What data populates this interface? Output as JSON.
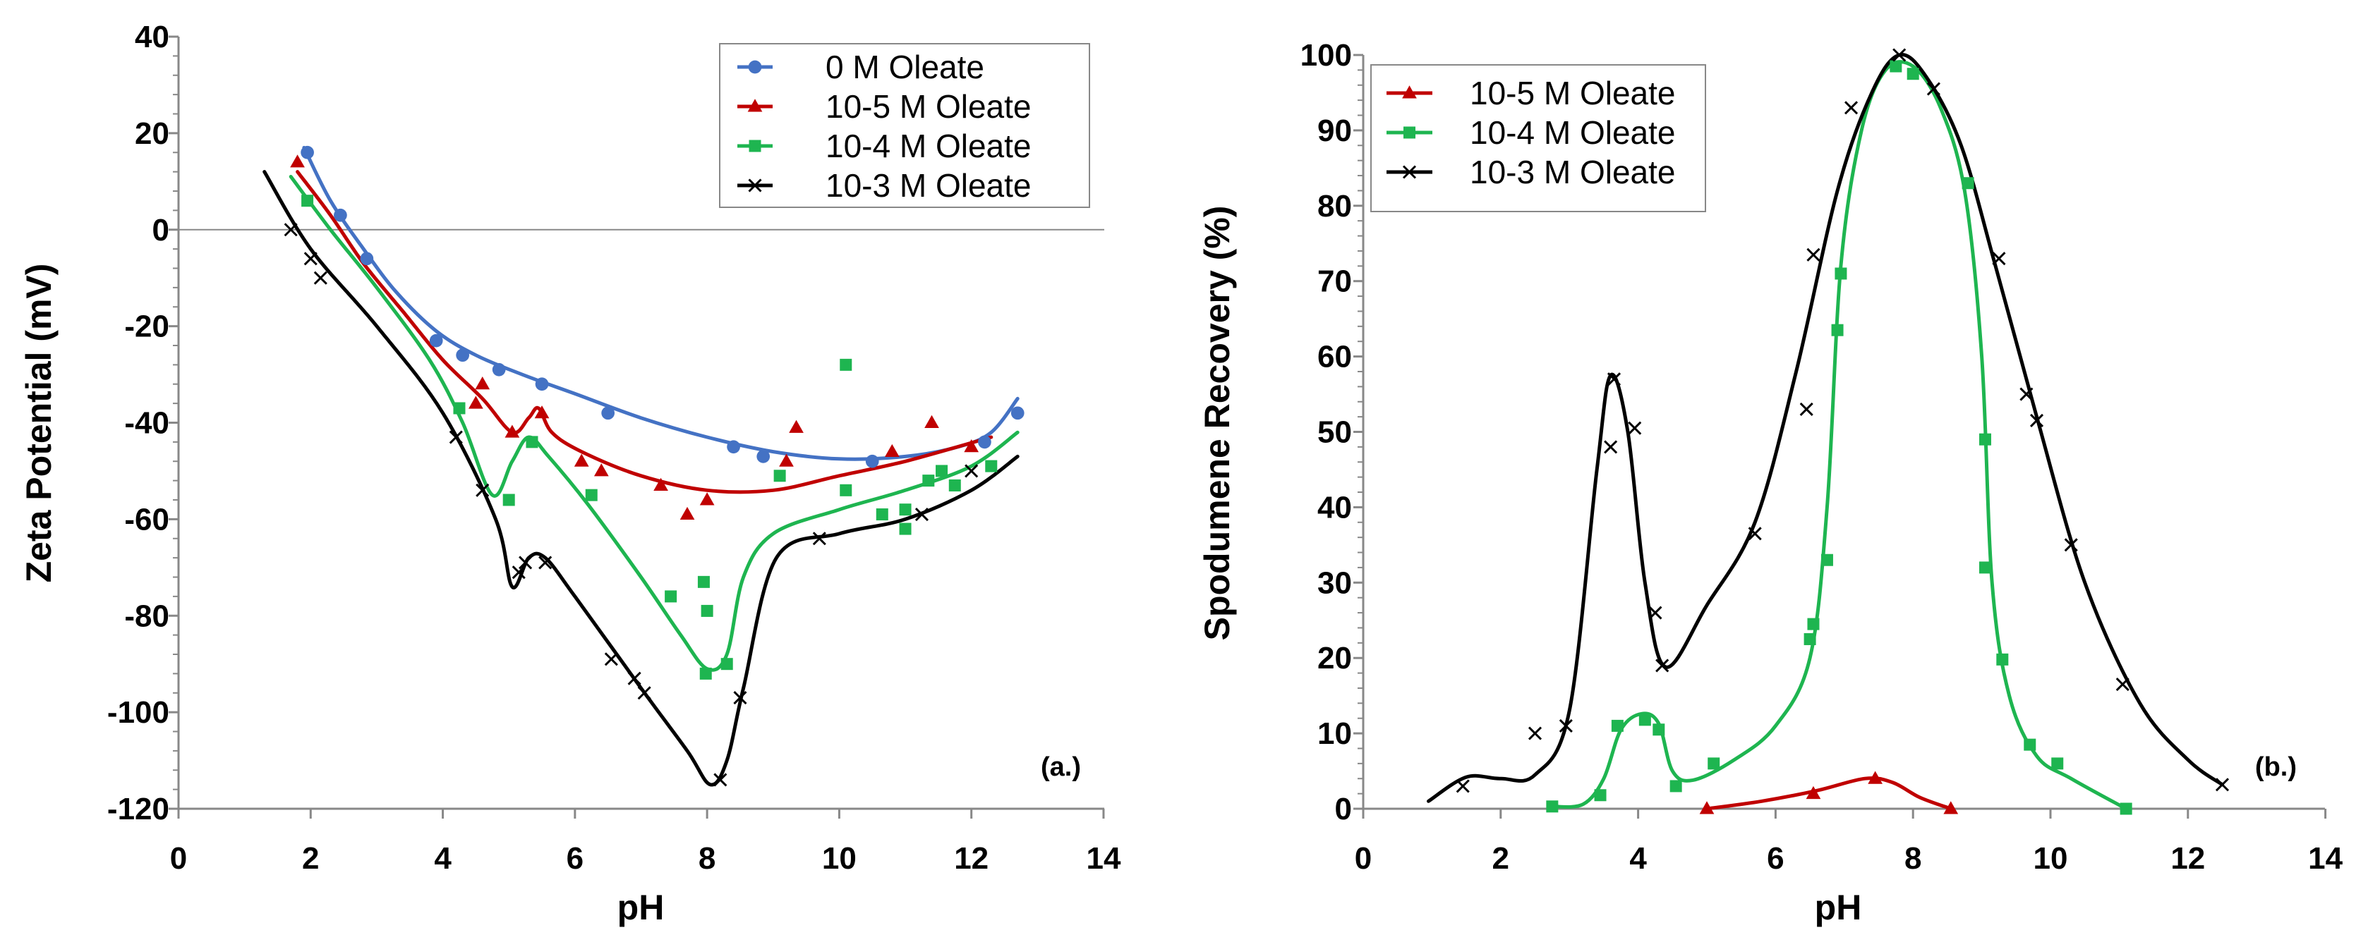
{
  "chart_data": [
    {
      "type": "scatter",
      "panel_label": "(a.)",
      "xlabel": "pH",
      "ylabel": "Zeta Potential (mV)",
      "xlim": [
        0,
        14
      ],
      "ylim": [
        -120,
        40
      ],
      "xticks": [
        0,
        2,
        4,
        6,
        8,
        10,
        12,
        14
      ],
      "yticks": [
        -120,
        -100,
        -80,
        -60,
        -40,
        -20,
        0,
        20,
        40
      ],
      "grid": false,
      "legend_position": "top-right",
      "zero_line": true,
      "series": [
        {
          "name": "0 M Oleate",
          "color": "#4472C4",
          "marker": "circle",
          "points": [
            [
              1.95,
              16
            ],
            [
              2.45,
              3
            ],
            [
              2.85,
              -6
            ],
            [
              3.9,
              -23
            ],
            [
              4.3,
              -26
            ],
            [
              4.85,
              -29
            ],
            [
              5.5,
              -32
            ],
            [
              6.5,
              -38
            ],
            [
              8.4,
              -45
            ],
            [
              8.85,
              -47
            ],
            [
              10.5,
              -48
            ],
            [
              12.2,
              -44
            ],
            [
              12.7,
              -38
            ]
          ],
          "curve": [
            [
              1.9,
              17
            ],
            [
              2.3,
              6
            ],
            [
              2.8,
              -4
            ],
            [
              3.3,
              -13
            ],
            [
              3.9,
              -21
            ],
            [
              4.5,
              -26
            ],
            [
              5.2,
              -30
            ],
            [
              6,
              -34
            ],
            [
              7,
              -39
            ],
            [
              8,
              -43
            ],
            [
              9,
              -46
            ],
            [
              10,
              -47.5
            ],
            [
              11,
              -47
            ],
            [
              11.8,
              -45
            ],
            [
              12.3,
              -42
            ],
            [
              12.7,
              -35
            ]
          ]
        },
        {
          "name": "10-5 M Oleate",
          "color": "#C00000",
          "marker": "triangle",
          "points": [
            [
              1.8,
              14
            ],
            [
              4.5,
              -36
            ],
            [
              4.6,
              -32
            ],
            [
              5.05,
              -42
            ],
            [
              5.5,
              -38
            ],
            [
              6.1,
              -48
            ],
            [
              6.4,
              -50
            ],
            [
              7.3,
              -53
            ],
            [
              7.7,
              -59
            ],
            [
              8.0,
              -56
            ],
            [
              9.2,
              -48
            ],
            [
              9.35,
              -41
            ],
            [
              10.8,
              -46
            ],
            [
              11.4,
              -40
            ],
            [
              12.0,
              -45
            ]
          ],
          "curve": [
            [
              1.8,
              12
            ],
            [
              2.3,
              3
            ],
            [
              2.8,
              -7
            ],
            [
              3.4,
              -17
            ],
            [
              4,
              -27
            ],
            [
              4.6,
              -35
            ],
            [
              5.05,
              -42
            ],
            [
              5.3,
              -39
            ],
            [
              5.45,
              -37
            ],
            [
              5.65,
              -42
            ],
            [
              6.1,
              -46
            ],
            [
              7,
              -51
            ],
            [
              8,
              -54
            ],
            [
              9,
              -54
            ],
            [
              10,
              -51
            ],
            [
              11,
              -48
            ],
            [
              12.3,
              -43
            ]
          ]
        },
        {
          "name": "10-4 M Oleate",
          "color": "#1EB550",
          "marker": "square",
          "points": [
            [
              1.95,
              6
            ],
            [
              4.25,
              -37
            ],
            [
              5.0,
              -56
            ],
            [
              5.35,
              -44
            ],
            [
              6.25,
              -55
            ],
            [
              7.45,
              -76
            ],
            [
              7.95,
              -73
            ],
            [
              8.0,
              -79
            ],
            [
              7.98,
              -92
            ],
            [
              8.3,
              -90
            ],
            [
              9.1,
              -51
            ],
            [
              10.1,
              -28
            ],
            [
              10.1,
              -54
            ],
            [
              10.65,
              -59
            ],
            [
              11.0,
              -58
            ],
            [
              11.0,
              -62
            ],
            [
              11.35,
              -52
            ],
            [
              11.55,
              -50
            ],
            [
              11.75,
              -53
            ],
            [
              12.3,
              -49
            ]
          ],
          "curve": [
            [
              1.7,
              11
            ],
            [
              2.3,
              0
            ],
            [
              3,
              -12
            ],
            [
              3.8,
              -27
            ],
            [
              4.3,
              -40
            ],
            [
              4.75,
              -55
            ],
            [
              5.05,
              -48
            ],
            [
              5.3,
              -43
            ],
            [
              5.6,
              -47
            ],
            [
              6.2,
              -57
            ],
            [
              7,
              -72
            ],
            [
              7.6,
              -84
            ],
            [
              8,
              -91
            ],
            [
              8.3,
              -88
            ],
            [
              8.55,
              -72
            ],
            [
              9,
              -63
            ],
            [
              10,
              -58
            ],
            [
              11,
              -54
            ],
            [
              12,
              -49
            ],
            [
              12.7,
              -42
            ]
          ]
        },
        {
          "name": "10-3 M Oleate",
          "color": "#000000",
          "marker": "x",
          "points": [
            [
              1.7,
              0
            ],
            [
              2.0,
              -6
            ],
            [
              2.15,
              -10
            ],
            [
              4.2,
              -43
            ],
            [
              4.6,
              -54
            ],
            [
              5.15,
              -71
            ],
            [
              5.25,
              -69
            ],
            [
              5.55,
              -69
            ],
            [
              6.55,
              -89
            ],
            [
              6.9,
              -93
            ],
            [
              7.05,
              -96
            ],
            [
              8.2,
              -114
            ],
            [
              8.5,
              -97
            ],
            [
              9.7,
              -64
            ],
            [
              11.25,
              -59
            ],
            [
              12.0,
              -50
            ]
          ],
          "curve": [
            [
              1.3,
              12
            ],
            [
              2,
              -4
            ],
            [
              3,
              -20
            ],
            [
              4,
              -38
            ],
            [
              4.8,
              -60
            ],
            [
              5.05,
              -74
            ],
            [
              5.3,
              -68
            ],
            [
              5.55,
              -68
            ],
            [
              6,
              -76
            ],
            [
              7,
              -95
            ],
            [
              7.7,
              -108
            ],
            [
              8.05,
              -115
            ],
            [
              8.3,
              -110
            ],
            [
              8.55,
              -95
            ],
            [
              9.05,
              -68
            ],
            [
              10,
              -63
            ],
            [
              11,
              -60
            ],
            [
              12,
              -54
            ],
            [
              12.7,
              -47
            ]
          ]
        }
      ]
    },
    {
      "type": "scatter",
      "panel_label": "(b.)",
      "xlabel": "pH",
      "ylabel": "Spodumene Recovery (%)",
      "xlim": [
        0,
        14
      ],
      "ylim": [
        0,
        100
      ],
      "xticks": [
        0,
        2,
        4,
        6,
        8,
        10,
        12,
        14
      ],
      "yticks": [
        0,
        10,
        20,
        30,
        40,
        50,
        60,
        70,
        80,
        90,
        100
      ],
      "grid": false,
      "legend_position": "top-left",
      "series": [
        {
          "name": "10-5 M Oleate",
          "color": "#C00000",
          "marker": "triangle",
          "points": [
            [
              5.0,
              0
            ],
            [
              6.55,
              2
            ],
            [
              7.45,
              4
            ],
            [
              8.55,
              0
            ]
          ],
          "curve": [
            [
              5,
              0
            ],
            [
              5.8,
              1
            ],
            [
              6.6,
              2.4
            ],
            [
              7.3,
              4
            ],
            [
              7.7,
              3.5
            ],
            [
              8.1,
              1.5
            ],
            [
              8.55,
              0
            ]
          ]
        },
        {
          "name": "10-4 M Oleate",
          "color": "#1EB550",
          "marker": "square",
          "points": [
            [
              2.75,
              0.3
            ],
            [
              3.45,
              1.8
            ],
            [
              3.7,
              11
            ],
            [
              4.1,
              11.8
            ],
            [
              4.3,
              10.5
            ],
            [
              4.55,
              3
            ],
            [
              5.1,
              6
            ],
            [
              6.5,
              22.5
            ],
            [
              6.55,
              24.5
            ],
            [
              6.75,
              33
            ],
            [
              6.9,
              63.5
            ],
            [
              6.95,
              71
            ],
            [
              7.75,
              98.5
            ],
            [
              8.0,
              97.5
            ],
            [
              8.8,
              83
            ],
            [
              9.05,
              49
            ],
            [
              9.05,
              32
            ],
            [
              9.3,
              19.8
            ],
            [
              9.7,
              8.5
            ],
            [
              10.1,
              6
            ],
            [
              11.1,
              0
            ]
          ],
          "curve": [
            [
              2.75,
              0.3
            ],
            [
              3.2,
              0.6
            ],
            [
              3.5,
              4
            ],
            [
              3.75,
              10.5
            ],
            [
              4.05,
              12.6
            ],
            [
              4.3,
              11.3
            ],
            [
              4.5,
              5
            ],
            [
              4.8,
              3.8
            ],
            [
              5.4,
              6.5
            ],
            [
              6,
              11
            ],
            [
              6.5,
              20
            ],
            [
              6.75,
              40
            ],
            [
              6.95,
              72
            ],
            [
              7.25,
              90
            ],
            [
              7.6,
              98
            ],
            [
              8.0,
              98.5
            ],
            [
              8.4,
              93
            ],
            [
              8.75,
              82
            ],
            [
              9.0,
              60
            ],
            [
              9.15,
              30
            ],
            [
              9.4,
              15
            ],
            [
              9.8,
              7
            ],
            [
              10.3,
              4
            ],
            [
              11.1,
              0
            ]
          ]
        },
        {
          "name": "10-3 M Oleate",
          "color": "#000000",
          "marker": "x",
          "points": [
            [
              1.45,
              3
            ],
            [
              2.5,
              10
            ],
            [
              2.95,
              11
            ],
            [
              3.6,
              48
            ],
            [
              3.65,
              57
            ],
            [
              3.95,
              50.5
            ],
            [
              4.25,
              26
            ],
            [
              4.35,
              19
            ],
            [
              5.7,
              36.5
            ],
            [
              6.45,
              53
            ],
            [
              6.55,
              73.5
            ],
            [
              7.1,
              93
            ],
            [
              7.8,
              100
            ],
            [
              8.3,
              95.5
            ],
            [
              9.25,
              73
            ],
            [
              9.65,
              55
            ],
            [
              9.8,
              51.5
            ],
            [
              10.3,
              35
            ],
            [
              11.05,
              16.5
            ],
            [
              12.5,
              3.2
            ]
          ],
          "curve": [
            [
              0.95,
              1
            ],
            [
              1.5,
              4.2
            ],
            [
              2.0,
              4
            ],
            [
              2.5,
              4.5
            ],
            [
              3.0,
              13
            ],
            [
              3.4,
              45
            ],
            [
              3.6,
              57.5
            ],
            [
              3.85,
              50
            ],
            [
              4.1,
              30
            ],
            [
              4.4,
              18.8
            ],
            [
              5,
              27
            ],
            [
              5.7,
              38
            ],
            [
              6.3,
              58
            ],
            [
              6.9,
              82
            ],
            [
              7.4,
              95
            ],
            [
              7.8,
              100
            ],
            [
              8.2,
              97
            ],
            [
              8.7,
              88
            ],
            [
              9.2,
              72
            ],
            [
              9.8,
              52
            ],
            [
              10.5,
              30
            ],
            [
              11.3,
              14
            ],
            [
              12.0,
              6.5
            ],
            [
              12.5,
              3.2
            ]
          ]
        }
      ]
    }
  ]
}
